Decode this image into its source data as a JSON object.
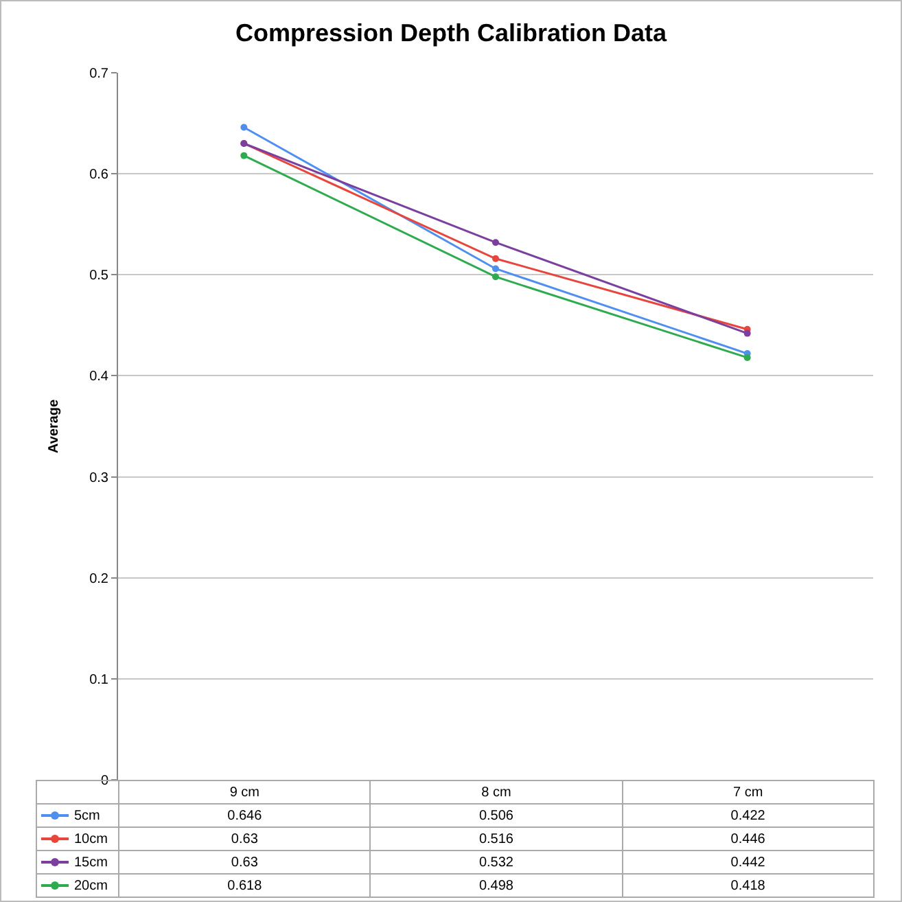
{
  "chart_data": {
    "type": "line",
    "title": "Compression Depth Calibration Data",
    "ylabel": "Average",
    "categories": [
      "9 cm",
      "8 cm",
      "7 cm"
    ],
    "series": [
      {
        "name": "5cm",
        "color": "#4f8ff0",
        "values": [
          0.646,
          0.506,
          0.422
        ]
      },
      {
        "name": "10cm",
        "color": "#e8453c",
        "values": [
          0.63,
          0.516,
          0.446
        ]
      },
      {
        "name": "15cm",
        "color": "#7b3f9e",
        "values": [
          0.63,
          0.532,
          0.442
        ]
      },
      {
        "name": "20cm",
        "color": "#2eab4f",
        "values": [
          0.618,
          0.498,
          0.418
        ]
      }
    ],
    "ylim": [
      0,
      0.7
    ],
    "yticks": [
      0,
      0.1,
      0.2,
      0.3,
      0.4,
      0.5,
      0.6,
      0.7
    ],
    "grid": "y",
    "legend": "bottom",
    "marker": "circle",
    "line_style": "solid",
    "data_labels": true,
    "tick_labels": "y"
  }
}
